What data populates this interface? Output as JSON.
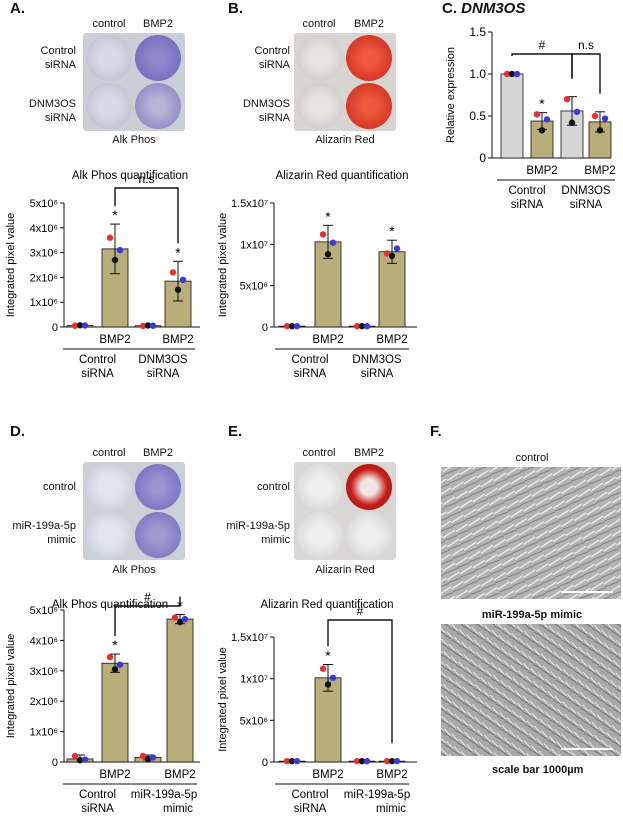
{
  "panels": {
    "A": {
      "letter": "A.",
      "col_labels": [
        "control",
        "BMP2"
      ],
      "row_labels": [
        [
          "Control",
          "siRNA"
        ],
        [
          "DNM3OS",
          "siRNA"
        ]
      ],
      "caption": "Alk Phos"
    },
    "B": {
      "letter": "B.",
      "col_labels": [
        "control",
        "BMP2"
      ],
      "row_labels": [
        [
          "Control",
          "siRNA"
        ],
        [
          "DNM3OS",
          "siRNA"
        ]
      ],
      "caption": "Alizarin Red"
    },
    "C": {
      "letter": "C.",
      "title": "DNM3OS"
    },
    "D": {
      "letter": "D.",
      "col_labels": [
        "control",
        "BMP2"
      ],
      "row_labels": [
        [
          "control"
        ],
        [
          "miR-199a-5p",
          "mimic"
        ]
      ],
      "caption": "Alk Phos"
    },
    "E": {
      "letter": "E.",
      "col_labels": [
        "control",
        "BMP2"
      ],
      "row_labels": [
        [
          "control"
        ],
        [
          "miR-199a-5p",
          "mimic"
        ]
      ],
      "caption": "Alizarin Red"
    },
    "F": {
      "letter": "F.",
      "top_label": "control",
      "bottom_label": "miR-199a-5p mimic",
      "scale_bar": "scale bar 1000µm"
    }
  },
  "chart_data": [
    {
      "id": "A",
      "type": "bar",
      "title": "Alk Phos quantification",
      "ylabel": "Integrated pixel value",
      "ylim": [
        0,
        5000000
      ],
      "ytick_labels": [
        "0",
        "1x10⁶",
        "2x10⁶",
        "3x10⁶",
        "4x10⁶",
        "5x10⁶"
      ],
      "groups": [
        {
          "label": [
            "Control",
            "siRNA"
          ],
          "bars": [
            {
              "label": "",
              "value": 60000,
              "err": 0,
              "points": [
                50000,
                70000,
                60000
              ]
            },
            {
              "label": "BMP2",
              "value": 3150000,
              "err": 1000000,
              "points": [
                3600000,
                2700000,
                3100000
              ],
              "sig": "*"
            }
          ]
        },
        {
          "label": [
            "DNM3OS",
            "siRNA"
          ],
          "bars": [
            {
              "label": "",
              "value": 50000,
              "err": 0,
              "points": [
                40000,
                60000,
                50000
              ]
            },
            {
              "label": "BMP2",
              "value": 1850000,
              "err": 800000,
              "points": [
                2200000,
                1500000,
                1900000
              ],
              "sig": "*"
            }
          ]
        }
      ],
      "bracket": {
        "label": "n.s",
        "from": [
          0,
          1
        ],
        "to": [
          1,
          1
        ]
      }
    },
    {
      "id": "B",
      "type": "bar",
      "title": "Alizarin Red quantification",
      "ylabel": "Integrated pixel value",
      "ylim": [
        0,
        15000000
      ],
      "ytick_labels": [
        "0",
        "5x10⁶",
        "1x10⁷",
        "1.5x10⁷"
      ],
      "groups": [
        {
          "label": [
            "Control",
            "siRNA"
          ],
          "bars": [
            {
              "label": "",
              "value": 100000,
              "err": 0,
              "points": [
                100000,
                100000,
                100000
              ]
            },
            {
              "label": "BMP2",
              "value": 10300000,
              "err": 2000000,
              "points": [
                11200000,
                8800000,
                10200000
              ],
              "sig": "*"
            }
          ]
        },
        {
          "label": [
            "DNM3OS",
            "siRNA"
          ],
          "bars": [
            {
              "label": "",
              "value": 100000,
              "err": 0,
              "points": [
                100000,
                100000,
                100000
              ]
            },
            {
              "label": "BMP2",
              "value": 9100000,
              "err": 1400000,
              "points": [
                8900000,
                8600000,
                9500000
              ],
              "sig": "*"
            }
          ]
        }
      ]
    },
    {
      "id": "C",
      "type": "bar",
      "title": "",
      "ylabel": "Relative expression",
      "ylim": [
        0,
        1.5
      ],
      "ytick_labels": [
        "0",
        "0.5",
        "1.0",
        "1.5"
      ],
      "groups": [
        {
          "label": [
            "Control",
            "siRNA"
          ],
          "bars": [
            {
              "label": "",
              "value": 1.0,
              "err": 0,
              "points": [
                1.0,
                1.0,
                1.0
              ],
              "fill": "gray"
            },
            {
              "label": "BMP2",
              "value": 0.44,
              "err": 0.1,
              "points": [
                0.52,
                0.33,
                0.46
              ],
              "sig": "*"
            }
          ]
        },
        {
          "label": [
            "DNM3OS",
            "siRNA"
          ],
          "bars": [
            {
              "label": "",
              "value": 0.56,
              "err": 0.17,
              "points": [
                0.7,
                0.42,
                0.55
              ],
              "fill": "gray"
            },
            {
              "label": "BMP2",
              "value": 0.43,
              "err": 0.12,
              "points": [
                0.5,
                0.33,
                0.47
              ]
            }
          ]
        }
      ],
      "bracket": {
        "label": "#",
        "from": [
          0,
          0
        ],
        "to": [
          1,
          0
        ]
      },
      "bracket2": {
        "label": "n.s",
        "from": [
          1,
          0
        ],
        "to": [
          1,
          1
        ]
      }
    },
    {
      "id": "D",
      "type": "bar",
      "title": "Alk Phos quantification",
      "ylabel": "Integrated pixel value",
      "ylim": [
        0,
        5000000
      ],
      "ytick_labels": [
        "0",
        "1x10⁶",
        "2x10⁶",
        "3x10⁶",
        "4x10⁶",
        "5x10⁶"
      ],
      "groups": [
        {
          "label": [
            "Control",
            "siRNA"
          ],
          "bars": [
            {
              "label": "",
              "value": 100000,
              "err": 130000,
              "points": [
                200000,
                60000,
                80000
              ]
            },
            {
              "label": "BMP2",
              "value": 3250000,
              "err": 300000,
              "points": [
                3450000,
                3050000,
                3200000
              ],
              "sig": "*"
            }
          ]
        },
        {
          "label": [
            "miR-199a-5p",
            "mimic"
          ],
          "bars": [
            {
              "label": "",
              "value": 150000,
              "err": 80000,
              "points": [
                200000,
                100000,
                150000
              ]
            },
            {
              "label": "BMP2",
              "value": 4700000,
              "err": 150000,
              "points": [
                4750000,
                4600000,
                4700000
              ],
              "sig": "*"
            }
          ]
        }
      ],
      "bracket": {
        "label": "#",
        "from": [
          0,
          1
        ],
        "to": [
          1,
          1
        ]
      }
    },
    {
      "id": "E",
      "type": "bar",
      "title": "Alizarin Red quantification",
      "ylabel": "Integrated pixel value",
      "ylim": [
        0,
        15000000
      ],
      "ytick_labels": [
        "0",
        "5x10⁶",
        "1x10⁷",
        "1.5x10⁷"
      ],
      "groups": [
        {
          "label": [
            "Control",
            "siRNA"
          ],
          "bars": [
            {
              "label": "",
              "value": 100000,
              "err": 0,
              "points": [
                100000,
                100000,
                100000
              ]
            },
            {
              "label": "BMP2",
              "value": 10100000,
              "err": 1600000,
              "points": [
                11200000,
                9300000,
                10100000
              ],
              "sig": "*"
            }
          ]
        },
        {
          "label": [
            "miR-199a-5p",
            "mimic"
          ],
          "bars": [
            {
              "label": "",
              "value": 100000,
              "err": 0,
              "points": [
                100000,
                100000,
                100000
              ]
            },
            {
              "label": "BMP2",
              "value": 100000,
              "err": 0,
              "points": [
                100000,
                100000,
                100000
              ]
            }
          ]
        }
      ],
      "bracket": {
        "label": "#",
        "from": [
          0,
          1
        ],
        "to": [
          1,
          1
        ]
      }
    }
  ],
  "colors": {
    "bar_fill": "#b9ad7a",
    "bar_gray": "#d6d6d6",
    "dot_black": "#111111",
    "dot_red": "#e8312f",
    "dot_blue": "#3a3ad8",
    "alk_stain": "#6b63b8",
    "ars_stain": "#d42a1e"
  }
}
